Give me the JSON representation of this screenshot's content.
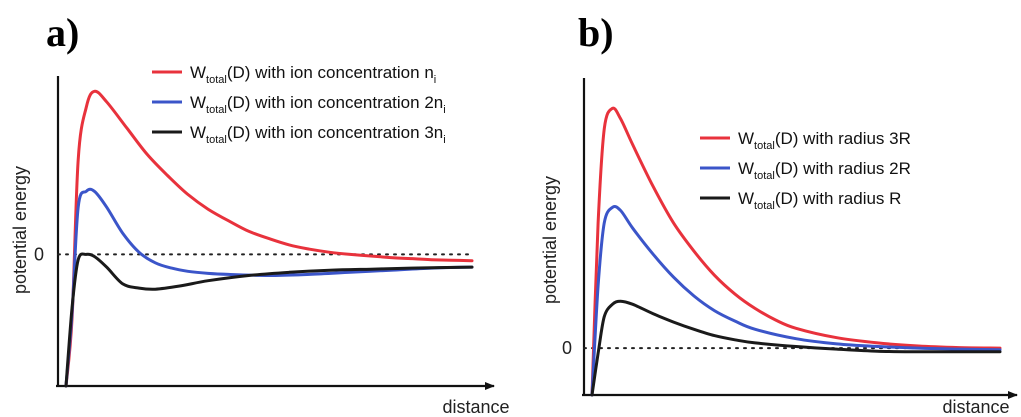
{
  "chart_data": [
    {
      "type": "line",
      "panel_label": "a)",
      "xlabel": "distance",
      "ylabel": "potential energy",
      "zero_tick": "0",
      "zero_reference_line": "dotted",
      "legend_position": "top-right",
      "series": [
        {
          "name": "W_total(D) with ion concentration n_i",
          "legend": {
            "prefix": "W",
            "sub": "total",
            "mid": "(D) with ion concentration n",
            "sub2": "i"
          },
          "color": "#e8323c",
          "points": [
            [
              0.0,
              -1.25
            ],
            [
              0.015,
              -0.6
            ],
            [
              0.03,
              0.9
            ],
            [
              0.05,
              1.4
            ],
            [
              0.07,
              1.55
            ],
            [
              0.1,
              1.45
            ],
            [
              0.15,
              1.2
            ],
            [
              0.2,
              0.95
            ],
            [
              0.25,
              0.75
            ],
            [
              0.3,
              0.57
            ],
            [
              0.35,
              0.43
            ],
            [
              0.4,
              0.32
            ],
            [
              0.45,
              0.22
            ],
            [
              0.5,
              0.15
            ],
            [
              0.55,
              0.09
            ],
            [
              0.6,
              0.05
            ],
            [
              0.65,
              0.02
            ],
            [
              0.7,
              0.0
            ],
            [
              0.75,
              -0.015
            ],
            [
              0.8,
              -0.03
            ],
            [
              0.85,
              -0.04
            ],
            [
              0.9,
              -0.05
            ],
            [
              0.95,
              -0.055
            ],
            [
              1.0,
              -0.06
            ]
          ]
        },
        {
          "name": "W_total(D) with ion concentration 2n_i",
          "legend": {
            "prefix": "W",
            "sub": "total",
            "mid": "(D) with ion concentration 2n",
            "sub2": "i"
          },
          "color": "#3b55c9",
          "points": [
            [
              0.0,
              -1.25
            ],
            [
              0.015,
              -0.55
            ],
            [
              0.03,
              0.45
            ],
            [
              0.05,
              0.6
            ],
            [
              0.07,
              0.6
            ],
            [
              0.1,
              0.45
            ],
            [
              0.14,
              0.2
            ],
            [
              0.18,
              0.02
            ],
            [
              0.22,
              -0.08
            ],
            [
              0.26,
              -0.13
            ],
            [
              0.3,
              -0.16
            ],
            [
              0.35,
              -0.18
            ],
            [
              0.4,
              -0.19
            ],
            [
              0.5,
              -0.2
            ],
            [
              0.6,
              -0.19
            ],
            [
              0.7,
              -0.17
            ],
            [
              0.8,
              -0.15
            ],
            [
              0.9,
              -0.13
            ],
            [
              1.0,
              -0.12
            ]
          ]
        },
        {
          "name": "W_total(D) with ion concentration 3n_i",
          "legend": {
            "prefix": "W",
            "sub": "total",
            "mid": "(D) with ion concentration 3n",
            "sub2": "i"
          },
          "color": "#1a1a1a",
          "points": [
            [
              0.0,
              -1.25
            ],
            [
              0.015,
              -0.5
            ],
            [
              0.03,
              -0.05
            ],
            [
              0.05,
              0.0
            ],
            [
              0.07,
              -0.02
            ],
            [
              0.1,
              -0.12
            ],
            [
              0.14,
              -0.28
            ],
            [
              0.18,
              -0.32
            ],
            [
              0.22,
              -0.33
            ],
            [
              0.28,
              -0.3
            ],
            [
              0.35,
              -0.25
            ],
            [
              0.45,
              -0.2
            ],
            [
              0.55,
              -0.17
            ],
            [
              0.65,
              -0.15
            ],
            [
              0.75,
              -0.14
            ],
            [
              0.85,
              -0.13
            ],
            [
              1.0,
              -0.12
            ]
          ]
        }
      ],
      "xlim": [
        0,
        1.0
      ],
      "ylim": [
        -1.25,
        1.6
      ]
    },
    {
      "type": "line",
      "panel_label": "b)",
      "xlabel": "distance",
      "ylabel": "potential energy",
      "zero_tick": "0",
      "zero_reference_line": "dotted",
      "legend_position": "top-right",
      "series": [
        {
          "name": "W_total(D) with radius 3R",
          "legend": {
            "prefix": "W",
            "sub": "total",
            "mid": "(D) with radius 3R",
            "sub2": ""
          },
          "color": "#e8323c",
          "points": [
            [
              0.0,
              -0.45
            ],
            [
              0.015,
              1.2
            ],
            [
              0.03,
              2.1
            ],
            [
              0.05,
              2.3
            ],
            [
              0.07,
              2.2
            ],
            [
              0.1,
              1.95
            ],
            [
              0.15,
              1.55
            ],
            [
              0.2,
              1.2
            ],
            [
              0.25,
              0.93
            ],
            [
              0.3,
              0.7
            ],
            [
              0.35,
              0.52
            ],
            [
              0.4,
              0.38
            ],
            [
              0.45,
              0.27
            ],
            [
              0.5,
              0.19
            ],
            [
              0.6,
              0.1
            ],
            [
              0.7,
              0.05
            ],
            [
              0.8,
              0.02
            ],
            [
              0.9,
              0.005
            ],
            [
              1.0,
              0.0
            ]
          ]
        },
        {
          "name": "W_total(D) with radius 2R",
          "legend": {
            "prefix": "W",
            "sub": "total",
            "mid": "(D) with radius 2R",
            "sub2": ""
          },
          "color": "#3b55c9",
          "points": [
            [
              0.0,
              -0.45
            ],
            [
              0.015,
              0.6
            ],
            [
              0.03,
              1.2
            ],
            [
              0.05,
              1.35
            ],
            [
              0.07,
              1.32
            ],
            [
              0.1,
              1.15
            ],
            [
              0.15,
              0.9
            ],
            [
              0.2,
              0.68
            ],
            [
              0.25,
              0.5
            ],
            [
              0.3,
              0.36
            ],
            [
              0.35,
              0.26
            ],
            [
              0.4,
              0.18
            ],
            [
              0.5,
              0.09
            ],
            [
              0.6,
              0.04
            ],
            [
              0.7,
              0.015
            ],
            [
              0.8,
              0.0
            ],
            [
              0.9,
              -0.01
            ],
            [
              1.0,
              -0.015
            ]
          ]
        },
        {
          "name": "W_total(D) with radius R",
          "legend": {
            "prefix": "W",
            "sub": "total",
            "mid": "(D) with radius R",
            "sub2": ""
          },
          "color": "#1a1a1a",
          "points": [
            [
              0.0,
              -0.45
            ],
            [
              0.015,
              -0.05
            ],
            [
              0.03,
              0.3
            ],
            [
              0.05,
              0.42
            ],
            [
              0.07,
              0.45
            ],
            [
              0.1,
              0.42
            ],
            [
              0.15,
              0.33
            ],
            [
              0.2,
              0.25
            ],
            [
              0.25,
              0.18
            ],
            [
              0.3,
              0.12
            ],
            [
              0.35,
              0.08
            ],
            [
              0.4,
              0.05
            ],
            [
              0.5,
              0.015
            ],
            [
              0.6,
              -0.01
            ],
            [
              0.7,
              -0.03
            ],
            [
              0.8,
              -0.035
            ],
            [
              0.9,
              -0.035
            ],
            [
              1.0,
              -0.035
            ]
          ]
        }
      ],
      "xlim": [
        0,
        1.0
      ],
      "ylim": [
        -0.45,
        2.4
      ]
    }
  ]
}
